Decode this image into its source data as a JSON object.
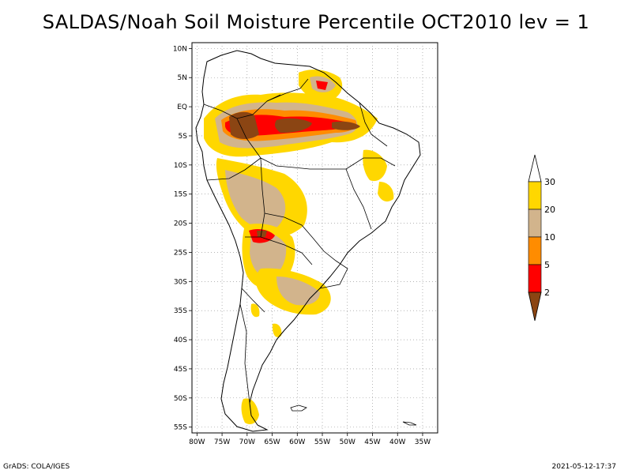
{
  "title": "SALDAS/Noah Soil Moisture Percentile OCT2010 lev = 1",
  "lat_labels": [
    "10N",
    "5N",
    "EQ",
    "5S",
    "10S",
    "15S",
    "20S",
    "25S",
    "30S",
    "35S",
    "40S",
    "45S",
    "50S",
    "55S"
  ],
  "lon_labels": [
    "80W",
    "75W",
    "70W",
    "65W",
    "60W",
    "55W",
    "50W",
    "45W",
    "40W",
    "35W"
  ],
  "extent": {
    "lon_min": -81,
    "lon_max": -32,
    "lat_min": -56,
    "lat_max": 11
  },
  "legend": {
    "labels": [
      "2",
      "5",
      "10",
      "20",
      "30"
    ],
    "colors": [
      "#8b4513",
      "#ff0000",
      "#ff8c00",
      "#d2b48c",
      "#ffd700"
    ]
  },
  "footer": {
    "left": "GrADS: COLA/IGES",
    "right": "2021-05-12-17:37"
  }
}
